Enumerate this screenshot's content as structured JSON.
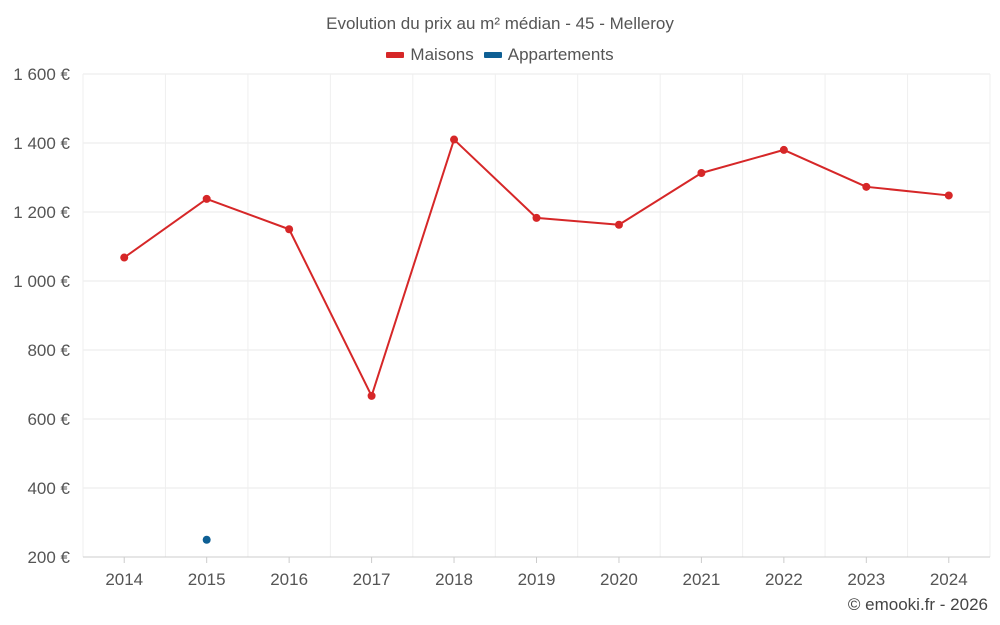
{
  "chart_data": {
    "type": "line",
    "title": "Evolution du prix au m² médian - 45 - Melleroy",
    "categories": [
      "2014",
      "2015",
      "2016",
      "2017",
      "2018",
      "2019",
      "2020",
      "2021",
      "2022",
      "2023",
      "2024"
    ],
    "series": [
      {
        "name": "Maisons",
        "color": "#d62728",
        "values": [
          1068,
          1238,
          1150,
          667,
          1410,
          1183,
          1163,
          1313,
          1380,
          1273,
          1248
        ]
      },
      {
        "name": "Appartements",
        "color": "#0e5f94",
        "values": [
          null,
          250,
          null,
          null,
          null,
          null,
          null,
          null,
          null,
          null,
          null
        ]
      }
    ],
    "ylim": [
      200,
      1600
    ],
    "yticks": [
      200,
      400,
      600,
      800,
      1000,
      1200,
      1400,
      1600
    ],
    "ytick_labels": [
      "200 €",
      "400 €",
      "600 €",
      "800 €",
      "1 000 €",
      "1 200 €",
      "1 400 €",
      "1 600 €"
    ],
    "grid": true,
    "legend_position": "top-center",
    "xlabel": "",
    "ylabel": ""
  },
  "credit": "© emooki.fr - 2026"
}
